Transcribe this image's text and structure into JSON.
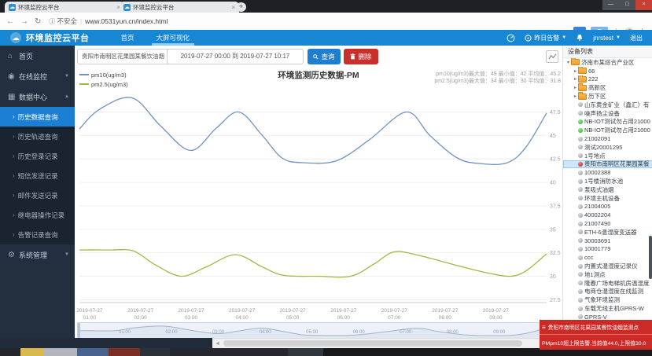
{
  "browser": {
    "tabs": [
      {
        "title": "环境监控云平台"
      },
      {
        "title": "环境监控云平台"
      }
    ],
    "security_label": "不安全",
    "url": "www.0531yun.cn/index.html"
  },
  "header": {
    "brand": "环境监控云平台",
    "nav": [
      {
        "label": "首页"
      },
      {
        "label": "大屏可视化"
      }
    ],
    "alert_menu": "昨日告警",
    "username": "jnrstest",
    "logout": "退出"
  },
  "sidebar": {
    "items": [
      {
        "label": "首页",
        "icon": "home",
        "type": "top",
        "id": "home"
      },
      {
        "label": "在线监控",
        "icon": "monitor",
        "type": "top",
        "id": "online-monitor",
        "caret": "down"
      },
      {
        "label": "数据中心",
        "icon": "data",
        "type": "top",
        "id": "data-center",
        "caret": "up"
      },
      {
        "label": "历史数据查询",
        "type": "sub",
        "id": "history-data-query",
        "selected": true
      },
      {
        "label": "历史轨迹查询",
        "type": "sub",
        "id": "history-track-query"
      },
      {
        "label": "历史登录记录",
        "type": "sub",
        "id": "history-login-records"
      },
      {
        "label": "短信发送记录",
        "type": "sub",
        "id": "sms-send-records"
      },
      {
        "label": "邮件发送记录",
        "type": "sub",
        "id": "email-send-records"
      },
      {
        "label": "继电器操作记录",
        "type": "sub",
        "id": "relay-operation-records"
      },
      {
        "label": "告警记录查询",
        "type": "sub",
        "id": "alert-records-query"
      },
      {
        "label": "系统管理",
        "icon": "gear",
        "type": "top",
        "id": "system-management",
        "caret": "down"
      }
    ]
  },
  "toolbar": {
    "device_select": "贵阳市南明区花果园某餐饮油烟",
    "date_range": "2019-07-27 00:00 到 2019-07-27 10:17",
    "query_label": "查询",
    "delete_label": "删除"
  },
  "chart_data": {
    "type": "line",
    "title": "环境监测历史数据-PM",
    "legend_position": "top-left",
    "grid": true,
    "y_axis_side": "right",
    "ylim": [
      27.2,
      49.8
    ],
    "y_ticks": [
      47.5,
      45,
      42.5,
      40,
      37.5,
      35,
      32.5,
      30,
      27.5
    ],
    "x_domain": [
      0.8,
      10.0
    ],
    "x_tick_hours": [
      1,
      2,
      3,
      4,
      5,
      6,
      7,
      8,
      9
    ],
    "x_tick_date": "2019-07-27",
    "x_tick_times": [
      "01:00",
      "02:00",
      "03:00",
      "04:00",
      "05:00",
      "06:00",
      "07:00",
      "08:00",
      "09:00"
    ],
    "series": [
      {
        "name": "pm10(ug/m3)",
        "color": "#6e93c5",
        "max": 49,
        "min": 42,
        "avg": 45.2,
        "x": [
          0.8,
          1.2,
          1.84,
          2.4,
          2.99,
          3.5,
          3.94,
          4.4,
          4.79,
          5.2,
          5.86,
          6.5,
          7.24,
          7.7,
          8.24,
          8.7,
          9.23,
          9.6,
          10.0
        ],
        "values": [
          45.7,
          47.8,
          49,
          46,
          43.4,
          45.8,
          47.5,
          45,
          42.6,
          42.1,
          42.3,
          44.5,
          47.5,
          45,
          42.6,
          42.0,
          42.1,
          43.8,
          47.4
        ]
      },
      {
        "name": "pm2.5(ug/m3)",
        "color": "#a8b545",
        "max": 34,
        "min": 30,
        "avg": 31.8,
        "x": [
          0.8,
          1.4,
          1.86,
          2.3,
          2.81,
          3.3,
          3.87,
          4.4,
          4.82,
          5.5,
          6.14,
          6.6,
          7.0,
          7.5,
          8.2,
          8.8,
          9.28,
          9.6,
          10.0
        ],
        "values": [
          32.8,
          32.8,
          32.7,
          31.2,
          30.0,
          31.0,
          32.3,
          31.0,
          30.1,
          30.0,
          30.0,
          31.3,
          32.6,
          32.2,
          31.2,
          30.4,
          30.0,
          30.6,
          32.4
        ]
      }
    ],
    "stats_lines": [
      "pm10(ug/m3)最大值：49 最小值：42 平均值：45.2",
      "pm2.5(ug/m3)最大值：34 最小值：30 平均值：31.8"
    ]
  },
  "device_panel": {
    "title": "设备列表",
    "items": [
      {
        "label": "济南市某综合产业区",
        "icon": "folder",
        "caret": "open",
        "level": 0
      },
      {
        "label": "66",
        "icon": "folder",
        "caret": "closed",
        "level": 1
      },
      {
        "label": "222",
        "icon": "folder",
        "caret": "closed",
        "level": 1
      },
      {
        "label": "高新区",
        "icon": "folder",
        "caret": "closed",
        "level": 1
      },
      {
        "label": "历下区",
        "icon": "folder",
        "caret": "closed",
        "level": 1
      },
      {
        "label": "山东黄金矿业（鑫汇）有",
        "icon": "dot-gray",
        "level": 1
      },
      {
        "label": "噪声扬尘设备",
        "icon": "dot-gray",
        "level": 1
      },
      {
        "label": "NB-IOT测试勿占用21000",
        "icon": "dot-green",
        "level": 1
      },
      {
        "label": "NB-IOT测试勿占用21000",
        "icon": "dot-green",
        "level": 1
      },
      {
        "label": "21002091",
        "icon": "dot-gray",
        "level": 1
      },
      {
        "label": "测试20001295",
        "icon": "dot-gray",
        "level": 1
      },
      {
        "label": "1号地点",
        "icon": "dot-gray",
        "level": 1
      },
      {
        "label": "贵阳市南明区花果园某餐",
        "icon": "dot-red",
        "level": 1,
        "selected": true
      },
      {
        "label": "10002388",
        "icon": "dot-gray",
        "level": 1
      },
      {
        "label": "1号楼消防水池",
        "icon": "dot-gray",
        "level": 1
      },
      {
        "label": "泵吸式油烟",
        "icon": "dot-gray",
        "level": 1
      },
      {
        "label": "环境主机设备",
        "icon": "dot-gray",
        "level": 1
      },
      {
        "label": "21004005",
        "icon": "dot-gray",
        "level": 1
      },
      {
        "label": "40002204",
        "icon": "dot-gray",
        "level": 1
      },
      {
        "label": "21007490",
        "icon": "dot-gray",
        "level": 1
      },
      {
        "label": "ETH-6温湿度变送器",
        "icon": "dot-gray",
        "level": 1
      },
      {
        "label": "30003691",
        "icon": "dot-gray",
        "level": 1
      },
      {
        "label": "10001779",
        "icon": "dot-gray",
        "level": 1
      },
      {
        "label": "ccc",
        "icon": "dot-gray",
        "level": 1
      },
      {
        "label": "内置式温湿度记录仪",
        "icon": "dot-gray",
        "level": 1
      },
      {
        "label": "地1测点",
        "icon": "dot-gray",
        "level": 1
      },
      {
        "label": "隆春广场电梯机房温湿度",
        "icon": "dot-gray",
        "level": 1
      },
      {
        "label": "电商仓温湿度在线监测",
        "icon": "dot-gray",
        "level": 1
      },
      {
        "label": "气象环境监测",
        "icon": "dot-gray",
        "level": 1
      },
      {
        "label": "车载无线主机GPRS-W",
        "icon": "dot-gray",
        "level": 1
      },
      {
        "label": "GPRS-V",
        "icon": "dot-gray",
        "level": 1
      }
    ]
  },
  "toast": {
    "line1": "贵阳市南明区花果园某餐饮油烟监测点",
    "line2": "PMpm10超上限告警,当前值44.0,上限值30.0"
  },
  "colors": {
    "header_blue": "#1786d3",
    "selected_menu_blue": "#1b7fd3",
    "primary_button": "#1e7fd0",
    "danger_button": "#c9302c",
    "toast_red": "#cb2a27",
    "pm10_line": "#6e93c5",
    "pm25_line": "#a8b545"
  }
}
